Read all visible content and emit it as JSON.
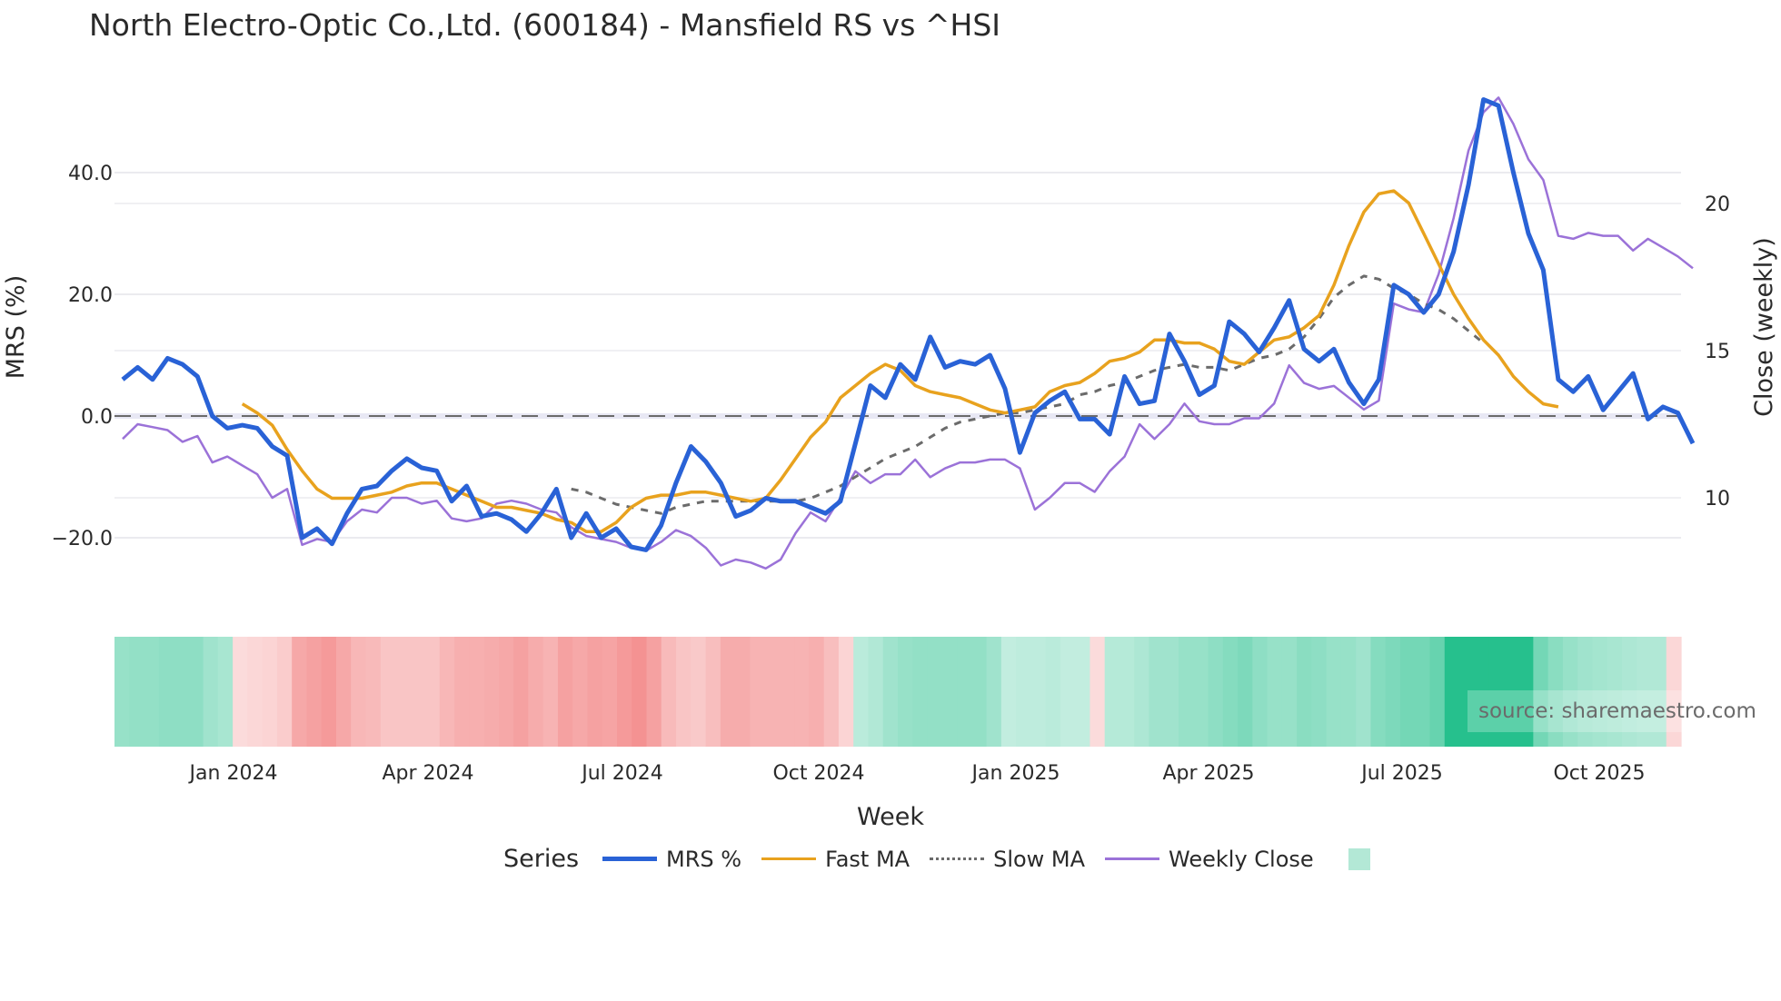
{
  "title": "North Electro-Optic Co.,Ltd. (600184) - Mansfield RS vs ^HSI",
  "source": "source: sharemaestro.com",
  "legend": {
    "title": "Series",
    "items": [
      {
        "label": "MRS %",
        "color": "#2962d6",
        "style": "solid"
      },
      {
        "label": "Fast MA",
        "color": "#e8a21e",
        "style": "solid"
      },
      {
        "label": "Slow MA",
        "color": "#6b6b6b",
        "style": "dotted"
      },
      {
        "label": "Weekly Close",
        "color": "#9b72d8",
        "style": "solid"
      },
      {
        "label": "",
        "color": "#b3e8d6",
        "style": "square"
      }
    ]
  },
  "colors": {
    "mrs": "#2962d6",
    "fast": "#e8a21e",
    "slow": "#6b6b6b",
    "close": "#9b72d8",
    "zero": "#6b6b6b",
    "grid": "#ebebef"
  },
  "chart_data": {
    "type": "line",
    "title": "North Electro-Optic Co.,Ltd. (600184) - Mansfield RS vs ^HSI",
    "xlabel": "Week",
    "ylabel": "MRS (%)",
    "y2label": "Close (weekly)",
    "ylim": [
      -28,
      55
    ],
    "y2lim": [
      8.2,
      23.8
    ],
    "yticks": [
      "40.0",
      "20.0",
      "0.0",
      "−20.0"
    ],
    "ytick_values": [
      40,
      20,
      0,
      -20
    ],
    "y2ticks": [
      "20",
      "15",
      "10"
    ],
    "y2tick_values": [
      20,
      15,
      10
    ],
    "xticks": [
      "Jan 2024",
      "Apr 2024",
      "Jul 2024",
      "Oct 2024",
      "Jan 2025",
      "Apr 2025",
      "Jul 2025",
      "Oct 2025"
    ],
    "xtick_index": [
      8.5,
      21.5,
      34.5,
      47.5,
      60.5,
      73.5,
      86.5,
      99.5
    ],
    "n_weeks": 106,
    "series": [
      {
        "name": "MRS %",
        "axis": "left",
        "values": [
          6,
          8,
          6,
          9.5,
          8.5,
          6.5,
          0,
          -2,
          -1.5,
          -2,
          -5,
          -6.5,
          -20,
          -18.5,
          -21,
          -16,
          -12,
          -11.5,
          -9,
          -7,
          -8.5,
          -9,
          -14,
          -11.5,
          -16.5,
          -16,
          -17,
          -19,
          -16,
          -12,
          -20,
          -16,
          -20,
          -18.5,
          -21.5,
          -22,
          -18,
          -11,
          -5,
          -7.5,
          -11,
          -16.5,
          -15.5,
          -13.5,
          -14,
          -14,
          -15,
          -16,
          -14,
          -4.5,
          5,
          3,
          8.5,
          6,
          13,
          8,
          9,
          8.5,
          10,
          4.5,
          -6,
          0.5,
          2.5,
          4,
          -0.5,
          -0.5,
          -3,
          6.5,
          2,
          2.5,
          13.5,
          9,
          3.5,
          5,
          15.5,
          13.5,
          10.5,
          14.5,
          19,
          11,
          9,
          11,
          5.5,
          2,
          6,
          21.5,
          20,
          17,
          20,
          27,
          38,
          52,
          51,
          40,
          30,
          24,
          6,
          4,
          6.5,
          1,
          4,
          7,
          -0.5,
          1.5,
          0.5,
          -4.5
        ]
      },
      {
        "name": "Fast MA",
        "axis": "left",
        "start": 8,
        "values": [
          2,
          0.5,
          -1.5,
          -5.5,
          -9,
          -12,
          -13.5,
          -13.5,
          -13.5,
          -13,
          -12.5,
          -11.5,
          -11,
          -11,
          -12,
          -13,
          -14,
          -15,
          -15,
          -15.5,
          -16,
          -17,
          -17.5,
          -19,
          -19,
          -17.5,
          -15,
          -13.5,
          -13,
          -13,
          -12.5,
          -12.5,
          -13,
          -13.5,
          -14,
          -13.5,
          -10.5,
          -7,
          -3.5,
          -1,
          3,
          5,
          7,
          8.5,
          7.5,
          5,
          4,
          3.5,
          3,
          2,
          1,
          0.5,
          1,
          1.5,
          4,
          5,
          5.5,
          7,
          9,
          9.5,
          10.5,
          12.5,
          12.5,
          12,
          12,
          11,
          9,
          8.5,
          10.5,
          12.5,
          13,
          14.5,
          16.5,
          21.5,
          28,
          33.5,
          36.5,
          37,
          35,
          30,
          25,
          20,
          16,
          12.5,
          10,
          6.5,
          4,
          2,
          1.5
        ]
      },
      {
        "name": "Slow MA",
        "axis": "left",
        "start": 30,
        "values": [
          -12,
          -12.5,
          -13.5,
          -14.5,
          -15,
          -15.5,
          -16,
          -15,
          -14.5,
          -14,
          -14,
          -14,
          -14,
          -14,
          -14,
          -14,
          -13.5,
          -12.5,
          -11.5,
          -10,
          -8.5,
          -7,
          -6,
          -5,
          -3.5,
          -2,
          -1,
          -0.5,
          0,
          0.5,
          0.5,
          1,
          1.5,
          2,
          3.5,
          4,
          5,
          5.5,
          6.5,
          7.5,
          8,
          8.5,
          8,
          8,
          7.5,
          8.5,
          9.5,
          10,
          11,
          13,
          16,
          19.5,
          21.5,
          23,
          22.5,
          21,
          20,
          18.5,
          17.5,
          16,
          14,
          12
        ]
      },
      {
        "name": "Weekly Close",
        "axis": "right",
        "values": [
          12,
          12.5,
          12.4,
          12.3,
          11.9,
          12.1,
          11.2,
          11.4,
          11.1,
          10.8,
          10,
          10.3,
          8.4,
          8.6,
          8.5,
          9.2,
          9.6,
          9.5,
          10,
          10,
          9.8,
          9.9,
          9.3,
          9.2,
          9.3,
          9.8,
          9.9,
          9.8,
          9.6,
          9.5,
          9,
          8.7,
          8.6,
          8.5,
          8.3,
          8.2,
          8.5,
          8.9,
          8.7,
          8.3,
          7.7,
          7.9,
          7.8,
          7.6,
          7.9,
          8.8,
          9.5,
          9.2,
          10,
          10.9,
          10.5,
          10.8,
          10.8,
          11.3,
          10.7,
          11,
          11.2,
          11.2,
          11.3,
          11.3,
          11,
          9.6,
          10,
          10.5,
          10.5,
          10.2,
          10.9,
          11.4,
          12.5,
          12,
          12.5,
          13.2,
          12.6,
          12.5,
          12.5,
          12.7,
          12.7,
          13.2,
          14.5,
          13.9,
          13.7,
          13.8,
          13.4,
          13,
          13.3,
          16.6,
          16.4,
          16.3,
          17.6,
          19.5,
          21.8,
          23.1,
          23.6,
          22.7,
          21.5,
          20.8,
          18.9,
          18.8,
          19,
          18.9,
          18.9,
          18.4,
          18.8,
          18.5,
          18.2,
          17.8
        ]
      }
    ],
    "heatmap": {
      "name": "MRS bands",
      "values": [
        14,
        15,
        15,
        16,
        16,
        16,
        12,
        10,
        -4,
        -5,
        -6,
        -8,
        -18,
        -20,
        -22,
        -18,
        -14,
        -13,
        -10,
        -10,
        -10,
        -10,
        -14,
        -16,
        -16,
        -17,
        -18,
        -20,
        -17,
        -15,
        -20,
        -18,
        -20,
        -19,
        -22,
        -24,
        -20,
        -13,
        -10,
        -9,
        -12,
        -17,
        -17,
        -15,
        -15,
        -15,
        -15,
        -16,
        -12,
        -6,
        6,
        8,
        12,
        14,
        15,
        15,
        15,
        15,
        15,
        12,
        4,
        5,
        5,
        6,
        4,
        4,
        -4,
        7,
        7,
        9,
        12,
        12,
        14,
        14,
        16,
        18,
        20,
        16,
        14,
        14,
        17,
        16,
        14,
        14,
        12,
        18,
        20,
        22,
        22,
        25,
        40,
        40,
        40,
        40,
        40,
        40,
        22,
        17,
        14,
        12,
        11,
        10,
        9,
        8,
        8,
        -5
      ]
    }
  }
}
